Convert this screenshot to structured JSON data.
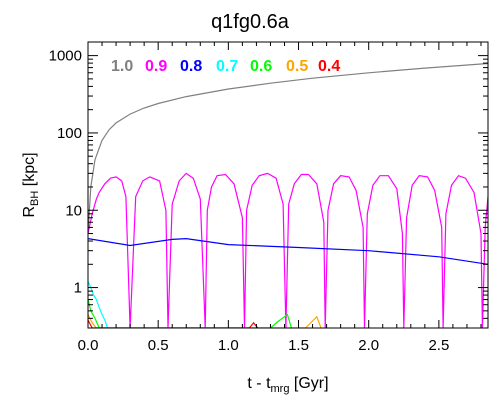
{
  "chart_data": {
    "type": "line",
    "title": "q1fg0.6a",
    "xlabel": {
      "main": "t - t",
      "sub": "mrg",
      "unit": " [Gyr]"
    },
    "ylabel": {
      "main": "R",
      "sub": "BH",
      "unit": " [kpc]"
    },
    "xlim": [
      0,
      2.85
    ],
    "ylim": [
      0.3,
      1500
    ],
    "yscale": "log",
    "xticks": [
      {
        "v": 0.0,
        "label": "0.0"
      },
      {
        "v": 0.5,
        "label": "0.5"
      },
      {
        "v": 1.0,
        "label": "1.0"
      },
      {
        "v": 1.5,
        "label": "1.5"
      },
      {
        "v": 2.0,
        "label": "2.0"
      },
      {
        "v": 2.5,
        "label": "2.5"
      }
    ],
    "yticks": [
      {
        "v": 1,
        "label": "1"
      },
      {
        "v": 10,
        "label": "10"
      },
      {
        "v": 100,
        "label": "100"
      },
      {
        "v": 1000,
        "label": "1000"
      }
    ],
    "legend_position": "top-left",
    "series": [
      {
        "name": "1.0",
        "color": "#808080",
        "x": [
          0.0,
          0.02,
          0.05,
          0.1,
          0.15,
          0.2,
          0.3,
          0.4,
          0.5,
          0.7,
          1.0,
          1.3,
          1.6,
          2.0,
          2.4,
          2.85
        ],
        "y": [
          5,
          20,
          45,
          80,
          110,
          135,
          175,
          210,
          240,
          295,
          370,
          440,
          510,
          600,
          690,
          790
        ]
      },
      {
        "name": "0.9",
        "color": "#ff00ff",
        "x": [
          0.0,
          0.03,
          0.06,
          0.08,
          0.12,
          0.16,
          0.2,
          0.24,
          0.27,
          0.3,
          0.34,
          0.39,
          0.44,
          0.51,
          0.555,
          0.57,
          0.6,
          0.65,
          0.7,
          0.75,
          0.8,
          0.835,
          0.85,
          0.88,
          0.92,
          0.98,
          1.04,
          1.1,
          1.115,
          1.13,
          1.17,
          1.22,
          1.28,
          1.34,
          1.39,
          1.41,
          1.43,
          1.47,
          1.52,
          1.57,
          1.63,
          1.68,
          1.69,
          1.71,
          1.75,
          1.8,
          1.86,
          1.91,
          1.96,
          1.97,
          1.99,
          2.03,
          2.08,
          2.14,
          2.2,
          2.24,
          2.25,
          2.27,
          2.31,
          2.36,
          2.42,
          2.47,
          2.52,
          2.53,
          2.55,
          2.59,
          2.64,
          2.69,
          2.75,
          2.8,
          2.81,
          2.83,
          2.85
        ],
        "y": [
          5,
          9,
          14,
          17,
          22,
          26,
          27,
          24,
          15,
          0.3,
          15,
          24,
          27,
          24,
          10,
          0.3,
          12,
          24,
          30,
          26,
          14,
          0.3,
          10,
          20,
          28,
          29,
          22,
          8,
          0.3,
          10,
          21,
          28,
          30,
          26,
          12,
          0.3,
          12,
          22,
          29,
          29,
          22,
          7,
          0.3,
          10,
          22,
          28,
          27,
          18,
          6,
          0.3,
          9,
          21,
          28,
          28,
          19,
          5,
          0.3,
          8,
          21,
          28,
          27,
          18,
          6,
          0.3,
          9,
          21,
          28,
          26,
          17,
          5,
          0.3,
          6,
          15
        ]
      },
      {
        "name": "0.8",
        "color": "#0000ff",
        "x": [
          0.0,
          0.3,
          0.6,
          0.7,
          1.0,
          1.5,
          2.0,
          2.5,
          2.85
        ],
        "y": [
          4.3,
          3.5,
          4.2,
          4.3,
          3.6,
          3.3,
          3.0,
          2.5,
          2.0
        ]
      },
      {
        "name": "0.7",
        "color": "#00ffff",
        "x": [
          0.0,
          0.02,
          0.04,
          0.06,
          0.08,
          0.1,
          0.12,
          0.14
        ],
        "y": [
          1.2,
          1.0,
          0.8,
          0.7,
          0.55,
          0.45,
          0.38,
          0.3
        ]
      },
      {
        "name": "0.6",
        "color": "#00ff00",
        "x": [
          0.0,
          0.02,
          0.05,
          0.08,
          1.3,
          1.35,
          1.4,
          1.42,
          1.45
        ],
        "y": [
          0.7,
          0.5,
          0.4,
          0.3,
          0.3,
          0.36,
          0.42,
          0.45,
          0.3
        ]
      },
      {
        "name": "0.5",
        "color": "#ffa500",
        "x": [
          0.0,
          0.03,
          0.06,
          1.55,
          1.6,
          1.63,
          1.66
        ],
        "y": [
          0.45,
          0.35,
          0.3,
          0.3,
          0.37,
          0.42,
          0.3
        ]
      },
      {
        "name": "0.4",
        "color": "#ff0000",
        "x": [
          0.0,
          0.03,
          1.15,
          1.18,
          1.21
        ],
        "y": [
          0.38,
          0.3,
          0.3,
          0.35,
          0.3
        ]
      }
    ]
  }
}
